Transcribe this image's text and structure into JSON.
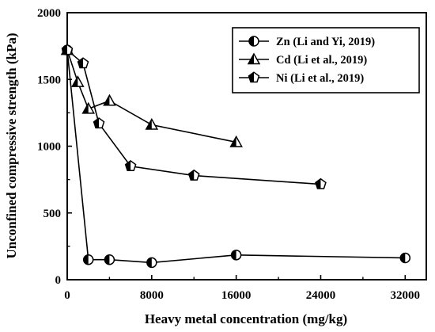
{
  "chart_data": {
    "type": "line",
    "xlabel": "Heavy metal concentration (mg/kg)",
    "ylabel": "Unconfined compressive strength (kPa)",
    "xlim": [
      0,
      34000
    ],
    "ylim": [
      0,
      2000
    ],
    "xticks": [
      0,
      8000,
      16000,
      24000,
      32000
    ],
    "xtick_labels": [
      "0",
      "8000",
      "16000",
      "24000",
      "32000"
    ],
    "yticks": [
      0,
      500,
      1000,
      1500,
      2000
    ],
    "ytick_labels": [
      "0",
      "500",
      "1000",
      "1500",
      "2000"
    ],
    "grid": false,
    "legend_position": "top-right",
    "series": [
      {
        "name": "Zn (Li and Yi, 2019)",
        "marker": "half-filled-circle",
        "x": [
          0,
          2000,
          4000,
          8000,
          16000,
          32000
        ],
        "y": [
          1720,
          150,
          150,
          128,
          185,
          163
        ]
      },
      {
        "name": "Cd (Li et al., 2019)",
        "marker": "half-filled-triangle",
        "x": [
          0,
          1000,
          2000,
          4000,
          8000,
          16000
        ],
        "y": [
          1720,
          1480,
          1280,
          1340,
          1160,
          1030
        ]
      },
      {
        "name": "Ni (Li et al., 2019)",
        "marker": "half-filled-pentagon",
        "x": [
          0,
          1500,
          3000,
          6000,
          12000,
          24000
        ],
        "y": [
          1720,
          1620,
          1170,
          850,
          780,
          715
        ]
      }
    ]
  }
}
